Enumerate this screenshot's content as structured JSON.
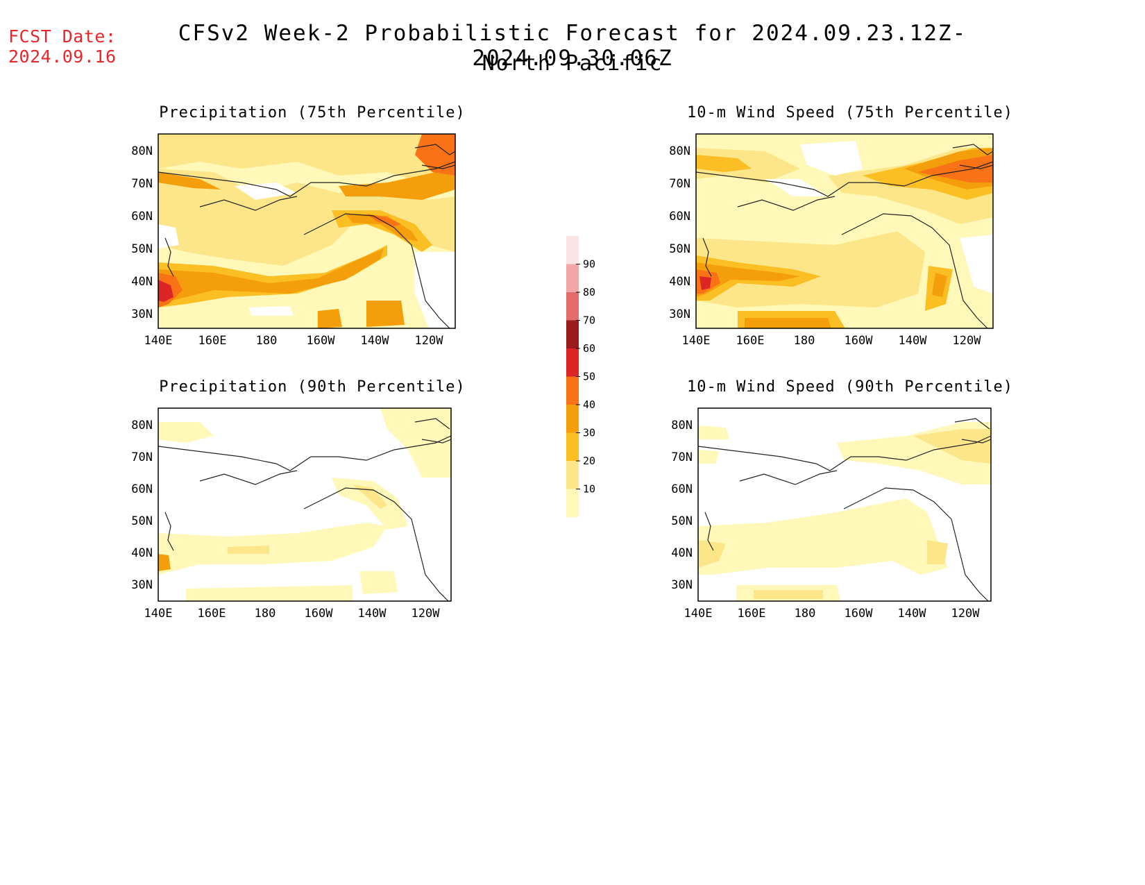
{
  "header": {
    "fcst_label": "FCST Date:",
    "fcst_date": "2024.09.16",
    "title": "CFSv2 Week-2 Probabilistic Forecast for 2024.09.23.12Z-2024.09.30.06Z",
    "subtitle": "North Pacific"
  },
  "panels": [
    {
      "id": "precip-75",
      "title": "Precipitation (75th Percentile)"
    },
    {
      "id": "wind-75",
      "title": "10-m Wind Speed (75th Percentile)"
    },
    {
      "id": "precip-90",
      "title": "Precipitation (90th Percentile)"
    },
    {
      "id": "wind-90",
      "title": "10-m Wind Speed (90th Percentile)"
    }
  ],
  "axes": {
    "lon_ticks": [
      "140E",
      "160E",
      "180",
      "160W",
      "140W",
      "120W"
    ],
    "lat_ticks": [
      "80N",
      "70N",
      "60N",
      "50N",
      "40N",
      "30N"
    ]
  },
  "colorbar": {
    "levels": [
      "10",
      "20",
      "30",
      "40",
      "50",
      "60",
      "70",
      "80",
      "90"
    ],
    "colors": [
      "#fff8b8",
      "#fde68a",
      "#fbbf24",
      "#f59e0b",
      "#f97316",
      "#dc2626",
      "#991b1b",
      "#e36b6b",
      "#f4a7a7",
      "#fde4e4"
    ]
  }
}
